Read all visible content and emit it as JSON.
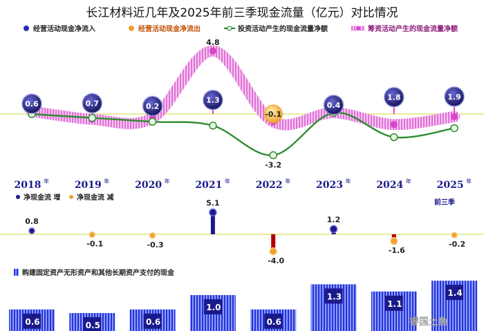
{
  "title": "长江材料近几年及2025年前三季现金流量（亿元）对比情况",
  "watermark": "睿国土鱼",
  "legend_top": [
    {
      "label": "经营活动现金净流入",
      "color": "#2b2bb8"
    },
    {
      "label": "经营活动现金净流出",
      "color": "#e07b00"
    },
    {
      "label": "投资活动产生的现金流量净额",
      "color": "#1a7a1a"
    },
    {
      "label": "筹资活动产生的现金流量净额",
      "color": "#d946c9"
    }
  ],
  "legend_mid": [
    {
      "label": "净现金流 增",
      "color": "#1a1a8c"
    },
    {
      "label": "净现金流 减",
      "color": "#e07b00"
    }
  ],
  "legend_bottom": {
    "label": "购建固定资产无形资产和其他长期资产支付的现金",
    "color": "#2233dd"
  },
  "year_suffix": "年",
  "period_note": "前三季",
  "colors": {
    "operating_in": "#2b2bb8",
    "operating_out": "#f0a030",
    "investing": "#2e8b2e",
    "financing": "#e070d8",
    "net_up": "#1a1a8c",
    "net_down": "#b00000",
    "capex": "#2233dd",
    "baseline": "#d8e060"
  },
  "chart_data": [
    {
      "type": "line",
      "categories": [
        "2018",
        "2019",
        "2020",
        "2021",
        "2022",
        "2023",
        "2024",
        "2025"
      ],
      "series": [
        {
          "name": "经营活动现金净流入",
          "values": [
            0.6,
            0.7,
            0.2,
            1.3,
            null,
            0.4,
            1.8,
            1.9
          ],
          "labels": [
            "0.6",
            "0.7",
            "0.2",
            "1.3",
            "",
            "0.4",
            "1.8",
            "1.9"
          ]
        },
        {
          "name": "经营活动现金净流出",
          "values": [
            null,
            null,
            null,
            null,
            -0.1,
            null,
            null,
            null
          ],
          "labels": [
            "",
            "",
            "",
            "",
            "-0.1",
            "",
            "",
            ""
          ]
        },
        {
          "name": "投资活动产生的现金流量净额",
          "values": [
            0.0,
            -0.3,
            -0.6,
            -0.9,
            -3.2,
            0.1,
            -1.8,
            -1.1
          ],
          "labels": [
            "",
            "",
            "",
            "",
            "-3.2",
            "",
            "",
            ""
          ]
        },
        {
          "name": "筹资活动产生的现金流量净额",
          "values": [
            0.2,
            -0.4,
            -0.3,
            4.8,
            -0.6,
            0.1,
            -0.8,
            -0.2
          ],
          "labels": [
            "",
            "",
            "",
            "4.8",
            "",
            "",
            "",
            ""
          ]
        }
      ]
    },
    {
      "type": "bar",
      "categories": [
        "2018",
        "2019",
        "2020",
        "2021",
        "2022",
        "2023",
        "2024",
        "2025"
      ],
      "series": [
        {
          "name": "净现金流",
          "values": [
            0.8,
            -0.1,
            -0.3,
            5.1,
            -4.0,
            1.2,
            -1.6,
            -0.2
          ],
          "labels": [
            "0.8",
            "-0.1",
            "-0.3",
            "5.1",
            "-4.0",
            "1.2",
            "-1.6",
            "-0.2"
          ]
        }
      ]
    },
    {
      "type": "bar",
      "categories": [
        "2018",
        "2019",
        "2020",
        "2021",
        "2022",
        "2023",
        "2024",
        "2025"
      ],
      "series": [
        {
          "name": "购建固定资产无形资产和其他长期资产支付的现金",
          "values": [
            0.6,
            0.5,
            0.6,
            1.0,
            0.6,
            1.3,
            1.1,
            1.4
          ],
          "labels": [
            "0.6",
            "0.5",
            "0.6",
            "1.0",
            "0.6",
            "1.3",
            "1.1",
            "1.4"
          ]
        }
      ]
    }
  ]
}
